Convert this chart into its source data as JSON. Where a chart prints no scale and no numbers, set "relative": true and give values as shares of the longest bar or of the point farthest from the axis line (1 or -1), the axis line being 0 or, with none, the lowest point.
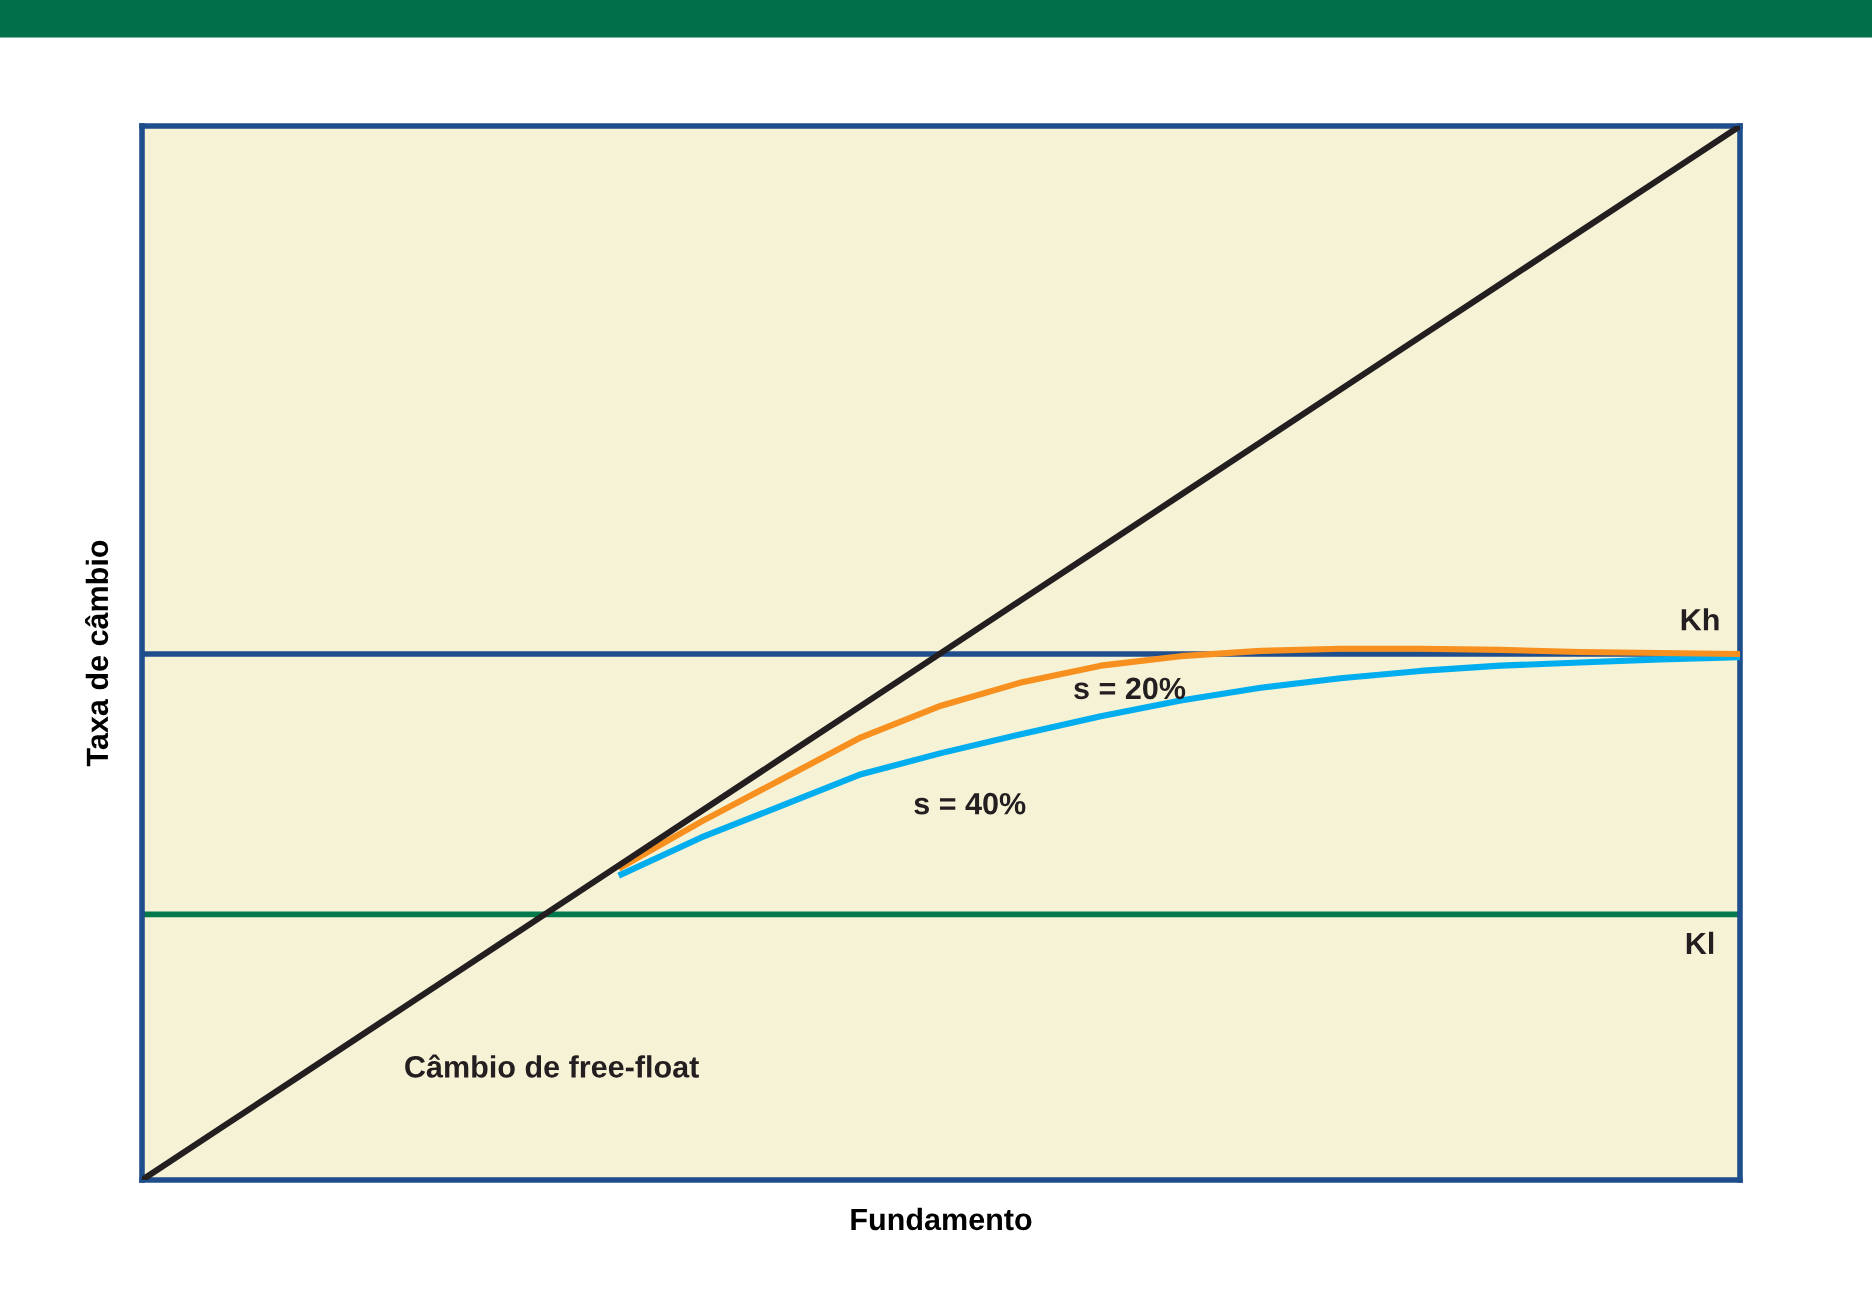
{
  "chart_data": {
    "type": "line",
    "relative": true,
    "xlabel": "Fundamento",
    "ylabel": "Taxa de câmbio",
    "tick_labels": false,
    "legend": false,
    "marker": "none",
    "line_style": "solid",
    "categories": [
      null,
      null,
      null,
      null,
      null,
      null,
      null,
      null,
      null,
      null,
      null,
      null,
      null,
      null,
      null,
      null,
      null,
      null,
      null,
      null,
      null
    ],
    "series": [
      {
        "name": "Câmbio de free-float",
        "color": "#231f20",
        "values": [
          0,
          0.05,
          0.1,
          0.15,
          0.2,
          0.25,
          0.3,
          0.35,
          0.4,
          0.45,
          0.5,
          0.55,
          0.6,
          0.65,
          0.7,
          0.75,
          0.8,
          0.85,
          0.9,
          0.95,
          1
        ]
      },
      {
        "name": "s = 20%",
        "color": "#f7901e",
        "values": [
          null,
          null,
          null,
          null,
          null,
          null,
          0.297,
          0.34,
          0.38,
          0.42,
          0.45,
          0.472,
          0.488,
          0.497,
          0.502,
          0.504,
          0.504,
          0.503,
          0.501,
          0.5,
          0.499
        ]
      },
      {
        "name": "s = 40%",
        "color": "#00aeef",
        "values": [
          null,
          null,
          null,
          null,
          null,
          null,
          0.29,
          0.325,
          0.355,
          0.385,
          0.405,
          0.423,
          0.44,
          0.455,
          0.467,
          0.476,
          0.483,
          0.488,
          0.491,
          0.494,
          0.496
        ]
      }
    ],
    "ref_lines": [
      {
        "axis": "y",
        "value": 0.499,
        "label": "Kh",
        "color": "#1f4e8c"
      },
      {
        "axis": "y",
        "value": 0.252,
        "label": "Kl",
        "color": "#007a4d"
      }
    ]
  }
}
